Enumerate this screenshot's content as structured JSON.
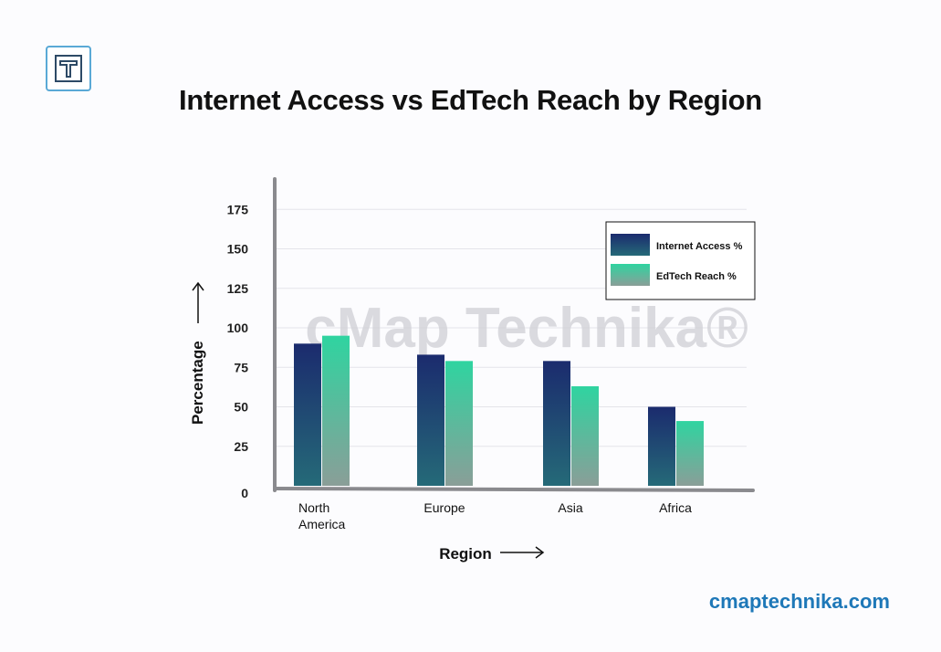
{
  "brand": {
    "logo_icon": "t-logo-icon",
    "watermark": "cMap Technika®",
    "website": "cmaptechnika.com",
    "website_color": "#1e78b8"
  },
  "chart_data": {
    "type": "bar",
    "title": "Internet Access vs EdTech Reach by Region",
    "xlabel": "Region",
    "ylabel": "Percentage",
    "categories": [
      "North America",
      "Europe",
      "Asia",
      "Africa"
    ],
    "category_lines": [
      [
        "North",
        "America"
      ],
      [
        "Europe"
      ],
      [
        "Asia"
      ],
      [
        "Africa"
      ]
    ],
    "series": [
      {
        "name": "Internet Access %",
        "values": [
          90,
          83,
          79,
          50
        ],
        "colors": [
          "#1b2b6e",
          "#256a78"
        ]
      },
      {
        "name": "EdTech Reach %",
        "values": [
          95,
          79,
          63,
          41
        ],
        "colors": [
          "#2fd4a0",
          "#8a9e98"
        ]
      }
    ],
    "yticks": [
      0,
      25,
      50,
      75,
      100,
      125,
      150,
      175
    ],
    "ylim": [
      0,
      200
    ],
    "grid": true,
    "legend_position": "top-right"
  }
}
